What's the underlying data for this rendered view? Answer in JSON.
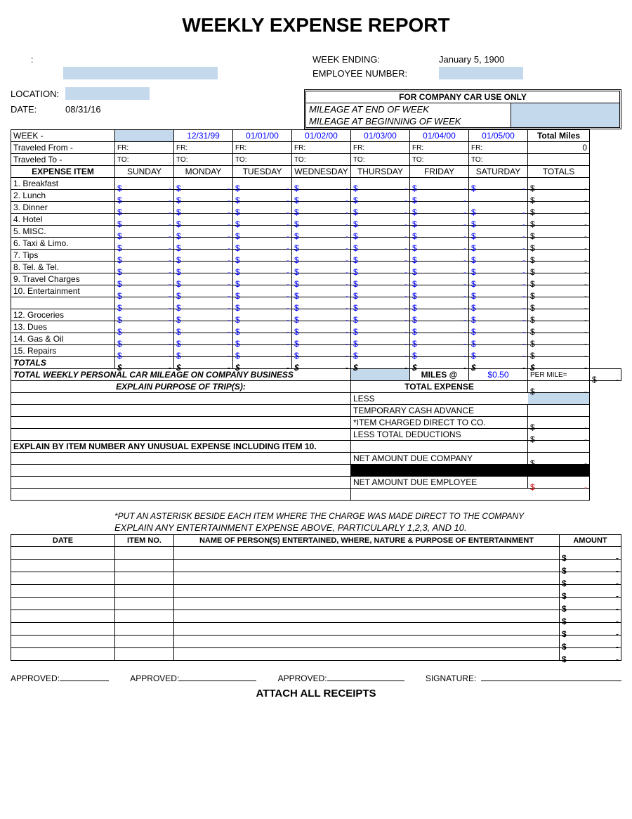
{
  "title": "WEEKLY EXPENSE REPORT",
  "header": {
    "week_ending_label": "WEEK ENDING:",
    "week_ending_value": "January 5, 1900",
    "empno_label": "EMPLOYEE NUMBER:",
    "location_label": "LOCATION:",
    "date_label": "DATE:",
    "date_value": "08/31/16",
    "name_label": "        :"
  },
  "company_car": {
    "title": "FOR COMPANY CAR USE ONLY",
    "end_label": "MILEAGE AT END OF WEEK",
    "begin_label": "MILEAGE AT BEGINNING OF WEEK"
  },
  "grid": {
    "week_label": "WEEK -",
    "from_label": "Traveled From -",
    "to_label": "Traveled To -",
    "fr": "FR:",
    "to": "TO:",
    "dates": [
      "",
      "12/31/99",
      "01/01/00",
      "01/02/00",
      "01/03/00",
      "01/04/00",
      "01/05/00"
    ],
    "total_miles_label": "Total Miles",
    "total_miles_value": "0",
    "expense_item_label": "EXPENSE ITEM",
    "days": [
      "SUNDAY",
      "MONDAY",
      "TUESDAY",
      "WEDNESDAY",
      "THURSDAY",
      "FRIDAY",
      "SATURDAY"
    ],
    "totals_label": "TOTALS",
    "items": [
      "1. Breakfast",
      "2. Lunch",
      "3. Dinner",
      "4. Hotel",
      "5.  MISC.",
      "6. Taxi & Limo.",
      "7. Tips",
      "8. Tel. & Tel.",
      "9. Travel Charges",
      "10. Entertainment",
      "",
      "12.  Groceries",
      "13. Dues",
      "14. Gas & Oil",
      "15. Repairs"
    ],
    "blank_lunch_sat": true,
    "totals_row": "TOTALS"
  },
  "mileage": {
    "label": "TOTAL WEEKLY PERSONAL CAR MILEAGE ON COMPANY BUSINESS",
    "miles_at": "MILES @",
    "rate": "$0.50",
    "per_mile": "PER MILE="
  },
  "purpose": {
    "label": "EXPLAIN PURPOSE OF TRIP(S):",
    "total_expense": "TOTAL EXPENSE",
    "less": "LESS",
    "temp_cash": "TEMPORARY CASH ADVANCE",
    "item_charged": "*ITEM CHARGED DIRECT TO CO.",
    "less_total": "LESS TOTAL DEDUCTIONS",
    "net_company": "NET AMOUNT DUE COMPANY",
    "net_employee": "NET AMOUNT DUE EMPLOYEE"
  },
  "unusual_label": "EXPLAIN BY ITEM NUMBER ANY UNUSUAL EXPENSE INCLUDING ITEM 10.",
  "footnotes": {
    "n1": "*PUT AN ASTERISK BESIDE EACH ITEM WHERE THE CHARGE WAS MADE DIRECT TO THE COMPANY",
    "n2": "EXPLAIN ANY ENTERTAINMENT EXPENSE ABOVE, PARTICULARLY 1,2,3, AND 10."
  },
  "ent_headers": {
    "date": "DATE",
    "item": "ITEM NO.",
    "desc": "NAME OF PERSON(S) ENTERTAINED, WHERE, NATURE & PURPOSE OF ENTERTAINMENT",
    "amount": "AMOUNT"
  },
  "ent_rows": 9,
  "signatures": {
    "approved": "APPROVED:",
    "signature": "SIGNATURE:"
  },
  "attach": "ATTACH ALL RECEIPTS",
  "dash": "-",
  "dollar": "$"
}
